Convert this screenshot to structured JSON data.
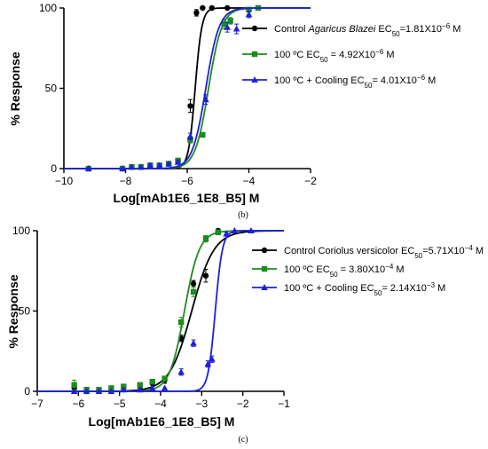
{
  "panels": [
    {
      "caption": "(b)",
      "chart_data": {
        "type": "scatter",
        "xlabel": "Log[mAb1E6_1E8_B5] M",
        "ylabel": "% Response",
        "xlim": [
          -10,
          -2
        ],
        "ylim": [
          0,
          100
        ],
        "xticks": [
          -10,
          -8,
          -6,
          -4,
          -2
        ],
        "xtick_labels": [
          "−10",
          "−8",
          "−6",
          "−4",
          "−2"
        ],
        "yticks": [
          0,
          50,
          100
        ],
        "ytick_labels": [
          "0",
          "50",
          "100"
        ],
        "grid": false,
        "legend_position": "right",
        "series": [
          {
            "legend_parts": [
              {
                "t": "Control "
              },
              {
                "t": "Agaricus Blazei",
                "italic": true
              },
              {
                "t": " EC"
              },
              {
                "t": "50",
                "sub": true
              },
              {
                "t": "=1.81X10"
              },
              {
                "t": "−6",
                "sup": true
              },
              {
                "t": " M"
              }
            ],
            "color": "#000000",
            "marker": "circle",
            "ec50_log": -5.742,
            "hill": 4.0,
            "x": [
              -9.2,
              -8.1,
              -7.8,
              -7.5,
              -7.2,
              -6.9,
              -6.6,
              -6.3,
              -5.9,
              -5.7,
              -5.5,
              -5.2,
              -4.7
            ],
            "y": [
              0,
              0,
              1,
              1,
              2,
              2,
              3,
              5,
              39,
              97,
              100,
              100,
              100
            ],
            "err": [
              0,
              0,
              0,
              0,
              1,
              1,
              1,
              1,
              4,
              2,
              0,
              0,
              0
            ]
          },
          {
            "legend_parts": [
              {
                "t": "100 ºC EC"
              },
              {
                "t": "50",
                "sub": true
              },
              {
                "t": " = 4.92X10"
              },
              {
                "t": "−6",
                "sup": true
              },
              {
                "t": " M"
              }
            ],
            "color": "#1e8b1e",
            "marker": "square",
            "ec50_log": -5.308,
            "hill": 2.0,
            "x": [
              -9.2,
              -8.1,
              -7.8,
              -7.5,
              -7.2,
              -6.9,
              -6.6,
              -6.3,
              -5.9,
              -5.5,
              -4.8,
              -4.6,
              -4.0,
              -3.7
            ],
            "y": [
              0,
              0,
              1,
              1,
              2,
              2,
              3,
              5,
              18,
              21,
              90,
              92,
              99,
              100
            ],
            "err": [
              0,
              0,
              0,
              0,
              1,
              1,
              1,
              1,
              2,
              1,
              3,
              2,
              1,
              0
            ]
          },
          {
            "legend_parts": [
              {
                "t": "100 ºC + Cooling EC"
              },
              {
                "t": "50",
                "sub": true
              },
              {
                "t": "= 4.01X10"
              },
              {
                "t": "−6",
                "sup": true
              },
              {
                "t": " M"
              }
            ],
            "color": "#1f1fdd",
            "marker": "triangle",
            "ec50_log": -5.397,
            "hill": 2.0,
            "x": [
              -9.2,
              -8.1,
              -7.8,
              -7.5,
              -7.2,
              -6.9,
              -6.6,
              -6.3,
              -5.9,
              -5.4,
              -4.7,
              -4.4,
              -4.0
            ],
            "y": [
              0,
              0,
              1,
              1,
              2,
              2,
              3,
              4,
              20,
              43,
              88,
              87,
              96
            ],
            "err": [
              0,
              0,
              0,
              0,
              1,
              1,
              1,
              1,
              2,
              3,
              3,
              3,
              2
            ]
          }
        ]
      }
    },
    {
      "caption": "(c)",
      "chart_data": {
        "type": "scatter",
        "xlabel": "Log[mAb1E6_1E8_B5] M",
        "ylabel": "% Response",
        "xlim": [
          -7,
          -1
        ],
        "ylim": [
          0,
          100
        ],
        "xticks": [
          -7,
          -6,
          -5,
          -4,
          -3,
          -2,
          -1
        ],
        "xtick_labels": [
          "−7",
          "−6",
          "−5",
          "−4",
          "−3",
          "−2",
          "−1"
        ],
        "yticks": [
          0,
          50,
          100
        ],
        "ytick_labels": [
          "0",
          "50",
          "100"
        ],
        "grid": false,
        "legend_position": "right",
        "series": [
          {
            "legend_parts": [
              {
                "t": "Control Coriolus versicolor EC"
              },
              {
                "t": "50",
                "sub": true
              },
              {
                "t": "=5.71X10"
              },
              {
                "t": "−4",
                "sup": true
              },
              {
                "t": " M"
              }
            ],
            "color": "#000000",
            "marker": "circle",
            "ec50_log": -3.243,
            "hill": 1.6,
            "x": [
              -6.1,
              -5.8,
              -5.5,
              -5.2,
              -4.9,
              -4.5,
              -4.2,
              -3.9,
              -3.5,
              -3.2,
              -2.9,
              -2.6
            ],
            "y": [
              2,
              0,
              1,
              1,
              2,
              3,
              5,
              7,
              33,
              67,
              72,
              100
            ],
            "err": [
              0,
              0,
              0,
              0,
              0,
              1,
              1,
              2,
              2,
              2,
              4,
              1
            ]
          },
          {
            "legend_parts": [
              {
                "t": "100 ºC EC"
              },
              {
                "t": "50",
                "sub": true
              },
              {
                "t": " = 3.80X10"
              },
              {
                "t": "−4",
                "sup": true
              },
              {
                "t": " M"
              }
            ],
            "color": "#1e8b1e",
            "marker": "square",
            "ec50_log": -3.42,
            "hill": 2.4,
            "x": [
              -6.1,
              -5.8,
              -5.5,
              -5.2,
              -4.9,
              -4.5,
              -4.2,
              -3.9,
              -3.5,
              -3.2,
              -2.9,
              -2.6
            ],
            "y": [
              4,
              1,
              1,
              2,
              3,
              4,
              6,
              8,
              43,
              62,
              95,
              99
            ],
            "err": [
              3,
              0,
              0,
              0,
              0,
              1,
              1,
              1,
              3,
              3,
              2,
              1
            ]
          },
          {
            "legend_parts": [
              {
                "t": "100 ºC + Cooling EC"
              },
              {
                "t": "50",
                "sub": true
              },
              {
                "t": "= 2.14X10"
              },
              {
                "t": "−3",
                "sup": true
              },
              {
                "t": " M"
              }
            ],
            "color": "#1f1fdd",
            "marker": "triangle",
            "ec50_log": -2.67,
            "hill": 5.0,
            "x": [
              -6.1,
              -5.8,
              -5.5,
              -5.2,
              -4.9,
              -4.5,
              -4.2,
              -3.9,
              -3.5,
              -3.2,
              -2.85,
              -2.75,
              -2.4,
              -2.2,
              -1.8
            ],
            "y": [
              0,
              0,
              0,
              0,
              1,
              1,
              2,
              2,
              12,
              30,
              17,
              20,
              98,
              100,
              100
            ],
            "err": [
              0,
              0,
              0,
              0,
              0,
              0,
              0,
              0,
              2,
              2,
              2,
              2,
              1,
              0,
              0
            ]
          }
        ]
      }
    }
  ]
}
